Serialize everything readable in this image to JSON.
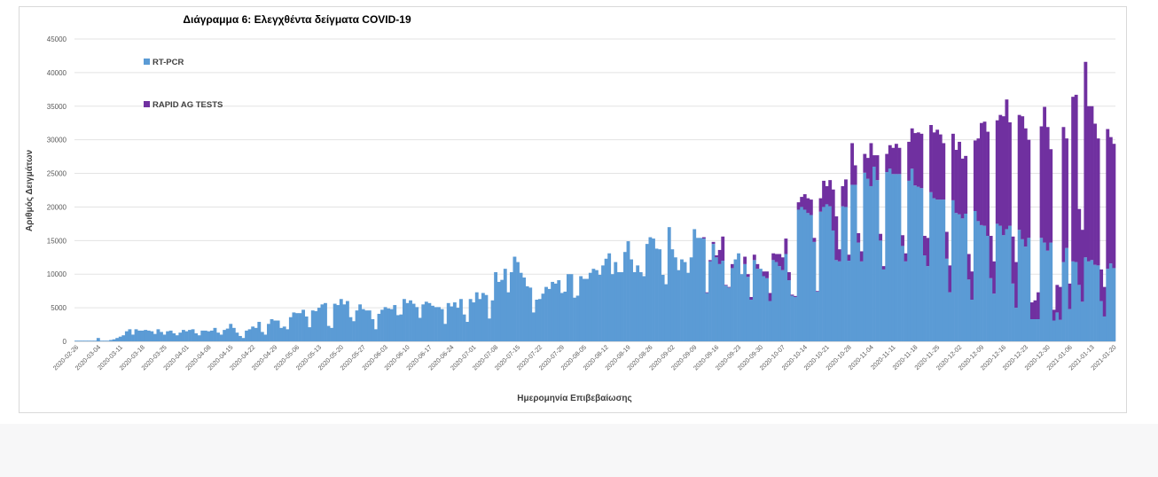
{
  "chart_data": {
    "type": "bar",
    "stacked": true,
    "title": "Διάγραμμα 6: Ελεγχθέντα δείγματα COVID-19",
    "xlabel": "Ημερομηνία Επιβεβαίωσης",
    "ylabel": "Αριθμός Δειγμάτων",
    "ylim": [
      0,
      45000
    ],
    "yticks": [
      "0",
      "5000",
      "10000",
      "15000",
      "20000",
      "25000",
      "30000",
      "35000",
      "40000",
      "45000"
    ],
    "grid": true,
    "legend_position": "top-left",
    "start_date": "2020-02-26",
    "end_date": "2021-01-20",
    "xtick_labels": [
      "2020-02-26",
      "2020-03-04",
      "2020-03-11",
      "2020-03-18",
      "2020-03-25",
      "2020-04-01",
      "2020-04-08",
      "2020-04-15",
      "2020-04-22",
      "2020-04-29",
      "2020-05-06",
      "2020-05-13",
      "2020-05-20",
      "2020-05-27",
      "2020-06-03",
      "2020-06-10",
      "2020-06-17",
      "2020-06-24",
      "2020-07-01",
      "2020-07-08",
      "2020-07-15",
      "2020-07-22",
      "2020-07-29",
      "2020-08-05",
      "2020-08-12",
      "2020-08-19",
      "2020-08-26",
      "2020-09-02",
      "2020-09-09",
      "2020-09-16",
      "2020-09-23",
      "2020-09-30",
      "2020-10-07",
      "2020-10-14",
      "2020-10-21",
      "2020-10-28",
      "2020-11-04",
      "2020-11-11",
      "2020-11-18",
      "2020-11-25",
      "2020-12-02",
      "2020-12-09",
      "2020-12-16",
      "2020-12-23",
      "2020-12-30",
      "2021-01-06",
      "2021-01-13",
      "2021-01-20"
    ],
    "series": [
      {
        "name": "RT-PCR",
        "color": "#5b9bd5",
        "values": [
          100,
          100,
          100,
          100,
          100,
          100,
          100,
          500,
          100,
          100,
          100,
          200,
          300,
          500,
          700,
          900,
          1500,
          1800,
          1000,
          1800,
          1600,
          1600,
          1700,
          1600,
          1500,
          1100,
          1800,
          1400,
          1000,
          1500,
          1600,
          1200,
          900,
          1300,
          1700,
          1500,
          1700,
          1800,
          1200,
          900,
          1600,
          1600,
          1500,
          1600,
          2000,
          1300,
          1000,
          1700,
          1900,
          2600,
          2000,
          1300,
          800,
          500,
          1600,
          1800,
          2200,
          2000,
          2900,
          1400,
          1000,
          2600,
          3300,
          3100,
          3100,
          2000,
          2200,
          1800,
          3600,
          4300,
          4200,
          4200,
          4700,
          3700,
          2100,
          4600,
          4500,
          5000,
          5500,
          5700,
          2300,
          2000,
          5600,
          5400,
          6300,
          5500,
          6000,
          3600,
          3000,
          4600,
          5500,
          4800,
          4600,
          4600,
          3300,
          1800,
          4100,
          4700,
          5100,
          4900,
          4800,
          5400,
          3900,
          4000,
          6300,
          5700,
          6100,
          5600,
          5100,
          3500,
          5500,
          5900,
          5700,
          5300,
          5100,
          5100,
          4800,
          2600,
          5700,
          5200,
          5800,
          5000,
          6300,
          4000,
          2900,
          6300,
          5800,
          7300,
          6300,
          7200,
          6900,
          3400,
          6100,
          10300,
          8850,
          9150,
          10800,
          7300,
          10300,
          12600,
          11800,
          10200,
          9500,
          8200,
          8000,
          4300,
          6200,
          6300,
          7100,
          8100,
          7800,
          8850,
          8600,
          9100,
          7200,
          7400,
          10000,
          10000,
          6500,
          6800,
          9700,
          9300,
          9300,
          10200,
          10800,
          10600,
          9900,
          11300,
          12300,
          13100,
          10000,
          11800,
          10300,
          10300,
          13300,
          14900,
          12200,
          10300,
          11300,
          10300,
          9700,
          14500,
          15500,
          15300,
          13800,
          13700,
          9900,
          8500,
          17000,
          13700,
          12500,
          10600,
          12200,
          11800,
          10200,
          12500,
          16700,
          15400,
          15400,
          15300,
          7200,
          11900,
          14500,
          12500,
          11500,
          12000,
          8300,
          8000,
          10900,
          12200,
          13100,
          10000,
          11500,
          9600,
          6200,
          12100,
          10800,
          10800,
          9700,
          9400,
          6000,
          12100,
          11800,
          11200,
          10600,
          13000,
          9100,
          6800,
          6600,
          19600,
          20000,
          19600,
          19100,
          18800,
          14800,
          7400,
          19300,
          20000,
          20400,
          20100,
          16500,
          12100,
          11900,
          20100,
          20000,
          12000,
          23300,
          23300,
          14700,
          11900,
          25100,
          24200,
          23100,
          26000,
          24000,
          15000,
          10700,
          25200,
          25700,
          24900,
          24900,
          24900,
          14200,
          11900,
          23900,
          25700,
          23200,
          23000,
          22800,
          12800,
          11200,
          22200,
          21300,
          21100,
          21100,
          21100,
          12300,
          7300,
          21000,
          19100,
          18900,
          18300,
          19000,
          9200,
          6200,
          19400,
          17900,
          17300,
          17200,
          15700,
          9400,
          7100,
          17500,
          17200,
          15800,
          16700,
          17200,
          8600,
          5000,
          16600,
          15200,
          14100,
          15400,
          3300,
          3300,
          3300,
          15400,
          14700,
          13500,
          14700,
          3100,
          4300,
          3200,
          11800,
          13900,
          4800,
          11900,
          11800,
          8400,
          5900,
          12500,
          11900,
          12100,
          11400,
          11300,
          6000,
          3700,
          10800,
          11600,
          10900
        ]
      },
      {
        "name": "RAPID AG TESTS",
        "color": "#7030a0",
        "values": [
          0,
          0,
          0,
          0,
          0,
          0,
          0,
          0,
          0,
          0,
          0,
          0,
          0,
          0,
          0,
          0,
          0,
          0,
          0,
          0,
          0,
          0,
          0,
          0,
          0,
          0,
          0,
          0,
          0,
          0,
          0,
          0,
          0,
          0,
          0,
          0,
          0,
          0,
          0,
          0,
          0,
          0,
          0,
          0,
          0,
          0,
          0,
          0,
          0,
          0,
          0,
          0,
          0,
          0,
          0,
          0,
          0,
          0,
          0,
          0,
          0,
          0,
          0,
          0,
          0,
          0,
          0,
          0,
          0,
          0,
          0,
          0,
          0,
          0,
          0,
          0,
          0,
          0,
          0,
          0,
          0,
          0,
          0,
          0,
          0,
          0,
          0,
          0,
          0,
          0,
          0,
          0,
          0,
          0,
          0,
          0,
          0,
          0,
          0,
          0,
          0,
          0,
          0,
          0,
          0,
          0,
          0,
          0,
          0,
          0,
          0,
          0,
          0,
          0,
          0,
          0,
          0,
          0,
          0,
          0,
          0,
          0,
          0,
          0,
          0,
          0,
          0,
          0,
          0,
          0,
          0,
          0,
          0,
          0,
          0,
          0,
          0,
          0,
          0,
          0,
          0,
          0,
          0,
          0,
          0,
          0,
          0,
          0,
          0,
          0,
          0,
          0,
          0,
          0,
          0,
          0,
          0,
          0,
          0,
          0,
          0,
          0,
          0,
          0,
          0,
          0,
          0,
          0,
          0,
          0,
          0,
          0,
          0,
          0,
          0,
          0,
          0,
          0,
          0,
          0,
          0,
          0,
          0,
          0,
          0,
          0,
          0,
          0,
          0,
          0,
          0,
          0,
          0,
          0,
          0,
          0,
          0,
          0,
          0,
          200,
          100,
          200,
          300,
          300,
          2100,
          3600,
          100,
          100,
          600,
          0,
          0,
          0,
          1100,
          400,
          400,
          800,
          700,
          0,
          700,
          1000,
          1200,
          1000,
          1200,
          1800,
          1900,
          2300,
          1200,
          150,
          150,
          1100,
          1500,
          2300,
          2200,
          2300,
          600,
          100,
          2000,
          3900,
          2700,
          3900,
          6100,
          6500,
          1800,
          3000,
          4100,
          900,
          6200,
          2900,
          1400,
          1500,
          2800,
          3100,
          6400,
          1700,
          3700,
          1000,
          500,
          2700,
          3500,
          3900,
          4500,
          3900,
          1600,
          1200,
          5800,
          6000,
          7800,
          8100,
          8100,
          2900,
          4200,
          10000,
          9800,
          10400,
          9700,
          8400,
          4000,
          4000,
          9900,
          9400,
          10800,
          8900,
          8600,
          3800,
          4200,
          10500,
          12300,
          15200,
          15500,
          15500,
          6300,
          4800,
          15400,
          16500,
          17700,
          19300,
          15400,
          7000,
          6800,
          17100,
          18300,
          17600,
          14600,
          2500,
          2800,
          4000,
          16600,
          20200,
          18400,
          13900,
          1600,
          4100,
          4900,
          20100,
          16300,
          3800,
          24500,
          24900,
          11300,
          10700,
          29100,
          23100,
          22900,
          21000,
          18900,
          4700,
          4400,
          20800,
          18800,
          18500
        ]
      }
    ]
  }
}
